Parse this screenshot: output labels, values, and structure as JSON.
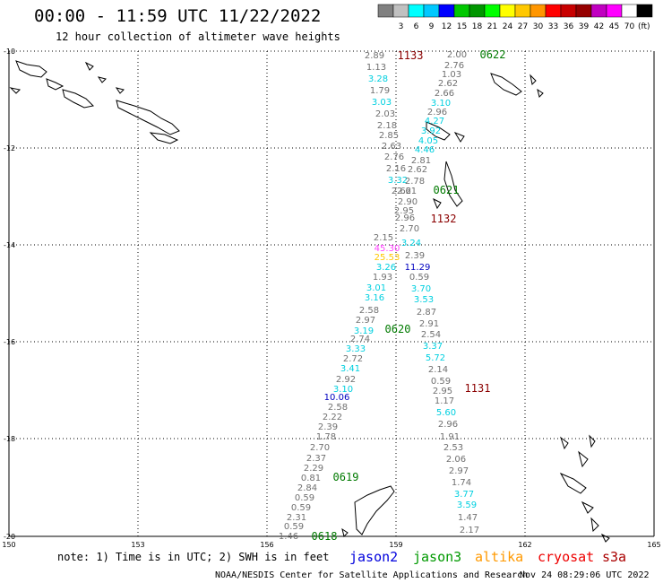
{
  "header": {
    "title": "00:00 - 11:59 UTC 11/22/2022",
    "subtitle": "12 hour collection of altimeter wave heights"
  },
  "legend": {
    "unit": "(ft)",
    "swatches": [
      {
        "color": "#808080",
        "label": ""
      },
      {
        "color": "#c0c0c0",
        "label": "3"
      },
      {
        "color": "#00ffff",
        "label": "6"
      },
      {
        "color": "#00c8ff",
        "label": "9"
      },
      {
        "color": "#0000ff",
        "label": "12"
      },
      {
        "color": "#00c800",
        "label": "15"
      },
      {
        "color": "#009600",
        "label": "18"
      },
      {
        "color": "#00ff00",
        "label": "21"
      },
      {
        "color": "#ffff00",
        "label": "24"
      },
      {
        "color": "#ffc800",
        "label": "27"
      },
      {
        "color": "#ff9600",
        "label": "30"
      },
      {
        "color": "#ff0000",
        "label": "33"
      },
      {
        "color": "#c80000",
        "label": "36"
      },
      {
        "color": "#960000",
        "label": "39"
      },
      {
        "color": "#c000c0",
        "label": "42"
      },
      {
        "color": "#ff00ff",
        "label": "45"
      },
      {
        "color": "#ffffff",
        "label": "70"
      },
      {
        "color": "#000000",
        "label": ""
      }
    ]
  },
  "axes": {
    "lat_labels": [
      "-10",
      "-12",
      "-14",
      "-16",
      "-18",
      "-20"
    ],
    "lon_labels": [
      "150",
      "153",
      "156",
      "159",
      "162",
      "165"
    ]
  },
  "pass_labels": [
    {
      "text": "1133",
      "color": "#8b0000"
    },
    {
      "text": "0622",
      "color": "#007a00"
    },
    {
      "text": "0621",
      "color": "#007a00"
    },
    {
      "text": "1132",
      "color": "#8b0000"
    },
    {
      "text": "0620",
      "color": "#007a00"
    },
    {
      "text": "1131",
      "color": "#8b0000"
    },
    {
      "text": "0619",
      "color": "#007a00"
    },
    {
      "text": "0618",
      "color": "#007a00"
    }
  ],
  "observations": [
    {
      "text": "2.89",
      "color": "#707070"
    },
    {
      "text": "1.13",
      "color": "#707070"
    },
    {
      "text": "3.28",
      "color": "#00d0e0"
    },
    {
      "text": "1.79",
      "color": "#707070"
    },
    {
      "text": "3.03",
      "color": "#00d0e0"
    },
    {
      "text": "2.03",
      "color": "#707070"
    },
    {
      "text": "2.18",
      "color": "#707070"
    },
    {
      "text": "2.85",
      "color": "#707070"
    },
    {
      "text": "2.63",
      "color": "#707070"
    },
    {
      "text": "2.76",
      "color": "#707070"
    },
    {
      "text": "2.16",
      "color": "#707070"
    },
    {
      "text": "3.32",
      "color": "#00d0e0"
    },
    {
      "text": "2.62",
      "color": "#707070"
    },
    {
      "text": "2.61",
      "color": "#707070"
    },
    {
      "text": "2.90",
      "color": "#707070"
    },
    {
      "text": "2.95",
      "color": "#707070"
    },
    {
      "text": "2.96",
      "color": "#707070"
    },
    {
      "text": "2.70",
      "color": "#707070"
    },
    {
      "text": "2.15",
      "color": "#707070"
    },
    {
      "text": "45.30",
      "color": "#ff44ff"
    },
    {
      "text": "25.53",
      "color": "#ffc800"
    },
    {
      "text": "3.26",
      "color": "#00d0e0"
    },
    {
      "text": "1.93",
      "color": "#707070"
    },
    {
      "text": "3.01",
      "color": "#00d0e0"
    },
    {
      "text": "3.16",
      "color": "#00d0e0"
    },
    {
      "text": "2.58",
      "color": "#707070"
    },
    {
      "text": "2.97",
      "color": "#707070"
    },
    {
      "text": "3.19",
      "color": "#00d0e0"
    },
    {
      "text": "2.74",
      "color": "#707070"
    },
    {
      "text": "3.33",
      "color": "#00d0e0"
    },
    {
      "text": "2.72",
      "color": "#707070"
    },
    {
      "text": "3.41",
      "color": "#00d0e0"
    },
    {
      "text": "2.92",
      "color": "#707070"
    },
    {
      "text": "3.10",
      "color": "#00d0e0"
    },
    {
      "text": "10.06",
      "color": "#0000c0"
    },
    {
      "text": "2.58",
      "color": "#707070"
    },
    {
      "text": "2.22",
      "color": "#707070"
    },
    {
      "text": "2.39",
      "color": "#707070"
    },
    {
      "text": "1.78",
      "color": "#707070"
    },
    {
      "text": "2.70",
      "color": "#707070"
    },
    {
      "text": "2.37",
      "color": "#707070"
    },
    {
      "text": "2.29",
      "color": "#707070"
    },
    {
      "text": "0.81",
      "color": "#707070"
    },
    {
      "text": "2.84",
      "color": "#707070"
    },
    {
      "text": "0.59",
      "color": "#707070"
    },
    {
      "text": "0.59",
      "color": "#707070"
    },
    {
      "text": "2.31",
      "color": "#707070"
    },
    {
      "text": "0.59",
      "color": "#707070"
    },
    {
      "text": "1.46",
      "color": "#707070"
    },
    {
      "text": "2.00",
      "color": "#707070"
    },
    {
      "text": "2.76",
      "color": "#707070"
    },
    {
      "text": "1.03",
      "color": "#707070"
    },
    {
      "text": "2.62",
      "color": "#707070"
    },
    {
      "text": "2.66",
      "color": "#707070"
    },
    {
      "text": "3.10",
      "color": "#00d0e0"
    },
    {
      "text": "2.96",
      "color": "#707070"
    },
    {
      "text": "4.27",
      "color": "#00d0e0"
    },
    {
      "text": "3.92",
      "color": "#00d0e0"
    },
    {
      "text": "4.05",
      "color": "#00d0e0"
    },
    {
      "text": "4.46",
      "color": "#00d0e0"
    },
    {
      "text": "2.81",
      "color": "#707070"
    },
    {
      "text": "2.62",
      "color": "#707070"
    },
    {
      "text": "2.78",
      "color": "#707070"
    },
    {
      "text": "3.24",
      "color": "#00d0e0"
    },
    {
      "text": "2.39",
      "color": "#707070"
    },
    {
      "text": "11.29",
      "color": "#0000c0"
    },
    {
      "text": "0.59",
      "color": "#707070"
    },
    {
      "text": "3.70",
      "color": "#00d0e0"
    },
    {
      "text": "3.53",
      "color": "#00d0e0"
    },
    {
      "text": "2.87",
      "color": "#707070"
    },
    {
      "text": "2.91",
      "color": "#707070"
    },
    {
      "text": "2.54",
      "color": "#707070"
    },
    {
      "text": "3.37",
      "color": "#00d0e0"
    },
    {
      "text": "5.72",
      "color": "#00d0e0"
    },
    {
      "text": "2.14",
      "color": "#707070"
    },
    {
      "text": "0.59",
      "color": "#707070"
    },
    {
      "text": "2.95",
      "color": "#707070"
    },
    {
      "text": "1.17",
      "color": "#707070"
    },
    {
      "text": "5.60",
      "color": "#00d0e0"
    },
    {
      "text": "2.96",
      "color": "#707070"
    },
    {
      "text": "1.91",
      "color": "#707070"
    },
    {
      "text": "2.53",
      "color": "#707070"
    },
    {
      "text": "2.06",
      "color": "#707070"
    },
    {
      "text": "2.97",
      "color": "#707070"
    },
    {
      "text": "1.74",
      "color": "#707070"
    },
    {
      "text": "3.77",
      "color": "#00d0e0"
    },
    {
      "text": "3.59",
      "color": "#00d0e0"
    },
    {
      "text": "1.47",
      "color": "#707070"
    },
    {
      "text": "2.17",
      "color": "#707070"
    }
  ],
  "footer": {
    "note": "note: 1) Time is in UTC; 2) SWH is in feet",
    "satellites": [
      {
        "text": "jason2",
        "color": "#0000dd"
      },
      {
        "text": "jason3",
        "color": "#009900"
      },
      {
        "text": "altika",
        "color": "#ff9900"
      },
      {
        "text": "cryosat",
        "color": "#ee0000"
      },
      {
        "text": "s3a",
        "color": "#aa0000"
      }
    ],
    "credit": "NOAA/NESDIS Center for Satellite Applications and Research",
    "generated": "Nov 24 08:29:06 UTC 2022"
  }
}
